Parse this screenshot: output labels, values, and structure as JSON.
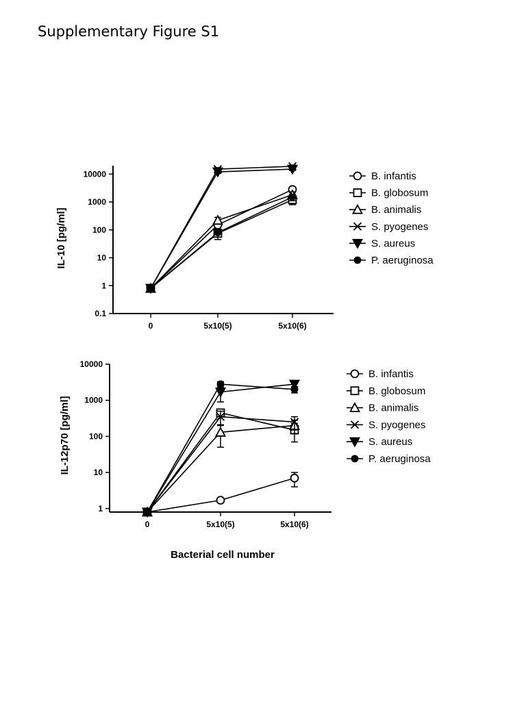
{
  "page": {
    "title": "Supplementary Figure S1"
  },
  "colors": {
    "ink": "#000000",
    "background": "#ffffff"
  },
  "chart_data": [
    {
      "type": "line",
      "ylabel": "IL-10 [pg/ml]",
      "xlabel": "",
      "categories": [
        "0",
        "5x10(5)",
        "5x10(6)"
      ],
      "yscale": "log",
      "ylim": [
        0.1,
        20000
      ],
      "yticks": [
        0.1,
        1,
        10,
        100,
        1000,
        10000
      ],
      "ytick_labels": [
        "0.1",
        "1",
        "10",
        "100",
        "1000",
        "10000"
      ],
      "legend_position": "right",
      "series": [
        {
          "name": "B. infantis",
          "marker": "circle-open",
          "values": [
            0.8,
            150,
            2800
          ],
          "errors": [
            0,
            40,
            600
          ]
        },
        {
          "name": "B. globosum",
          "marker": "square-open",
          "values": [
            0.8,
            75,
            1200
          ],
          "errors": [
            0,
            30,
            400
          ]
        },
        {
          "name": "B. animalis",
          "marker": "triangle-open",
          "values": [
            0.8,
            220,
            1800
          ],
          "errors": [
            0,
            60,
            500
          ]
        },
        {
          "name": "S. pyogenes",
          "marker": "x",
          "values": [
            0.8,
            15000,
            19000
          ],
          "errors": [
            0,
            2000,
            2000
          ]
        },
        {
          "name": "S. aureus",
          "marker": "triangle-down-filled",
          "values": [
            0.8,
            12000,
            15000
          ],
          "errors": [
            0,
            1500,
            1500
          ]
        },
        {
          "name": "P. aeruginosa",
          "marker": "circle-filled",
          "values": [
            0.8,
            80,
            1500
          ],
          "errors": [
            0,
            25,
            400
          ]
        }
      ]
    },
    {
      "type": "line",
      "ylabel": "IL-12p70 [pg/ml]",
      "xlabel": "Bacterial cell number",
      "categories": [
        "0",
        "5x10(5)",
        "5x10(6)"
      ],
      "yscale": "log",
      "ylim": [
        0.8,
        10000
      ],
      "yticks": [
        1,
        10,
        100,
        1000,
        10000
      ],
      "ytick_labels": [
        "1",
        "10",
        "100",
        "1000",
        "10000"
      ],
      "legend_position": "right",
      "series": [
        {
          "name": "B. infantis",
          "marker": "circle-open",
          "values": [
            0.8,
            1.7,
            7
          ],
          "errors": [
            0,
            0.2,
            3
          ]
        },
        {
          "name": "B. globosum",
          "marker": "square-open",
          "values": [
            0.8,
            450,
            150
          ],
          "errors": [
            0,
            100,
            80
          ]
        },
        {
          "name": "B. animalis",
          "marker": "triangle-open",
          "values": [
            0.8,
            130,
            200
          ],
          "errors": [
            0,
            80,
            80
          ]
        },
        {
          "name": "S. pyogenes",
          "marker": "x",
          "values": [
            0.8,
            350,
            250
          ],
          "errors": [
            0,
            150,
            100
          ]
        },
        {
          "name": "S. aureus",
          "marker": "triangle-down-filled",
          "values": [
            0.8,
            1700,
            2800
          ],
          "errors": [
            0,
            800,
            600
          ]
        },
        {
          "name": "P. aeruginosa",
          "marker": "circle-filled",
          "values": [
            0.8,
            2800,
            2000
          ],
          "errors": [
            0,
            500,
            400
          ]
        }
      ]
    }
  ]
}
